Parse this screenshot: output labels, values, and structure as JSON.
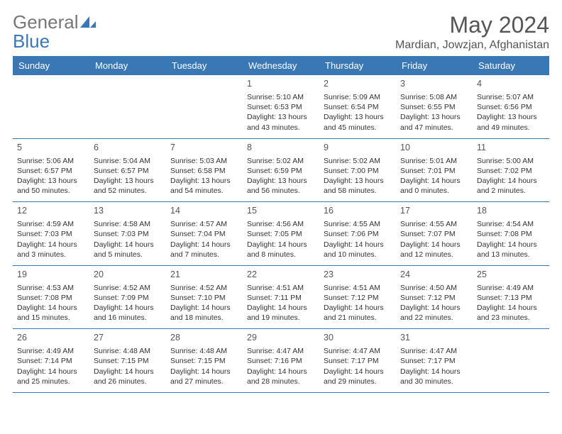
{
  "logo": {
    "general": "General",
    "blue": "Blue"
  },
  "title": "May 2024",
  "location": "Mardian, Jowzjan, Afghanistan",
  "colors": {
    "header_bg": "#3a78b5",
    "header_fg": "#ffffff",
    "border": "#3a78b5",
    "text": "#333333",
    "title_color": "#555555"
  },
  "dayNames": [
    "Sunday",
    "Monday",
    "Tuesday",
    "Wednesday",
    "Thursday",
    "Friday",
    "Saturday"
  ],
  "weeks": [
    [
      null,
      null,
      null,
      {
        "n": "1",
        "sr": "5:10 AM",
        "ss": "6:53 PM",
        "dl": "13 hours and 43 minutes."
      },
      {
        "n": "2",
        "sr": "5:09 AM",
        "ss": "6:54 PM",
        "dl": "13 hours and 45 minutes."
      },
      {
        "n": "3",
        "sr": "5:08 AM",
        "ss": "6:55 PM",
        "dl": "13 hours and 47 minutes."
      },
      {
        "n": "4",
        "sr": "5:07 AM",
        "ss": "6:56 PM",
        "dl": "13 hours and 49 minutes."
      }
    ],
    [
      {
        "n": "5",
        "sr": "5:06 AM",
        "ss": "6:57 PM",
        "dl": "13 hours and 50 minutes."
      },
      {
        "n": "6",
        "sr": "5:04 AM",
        "ss": "6:57 PM",
        "dl": "13 hours and 52 minutes."
      },
      {
        "n": "7",
        "sr": "5:03 AM",
        "ss": "6:58 PM",
        "dl": "13 hours and 54 minutes."
      },
      {
        "n": "8",
        "sr": "5:02 AM",
        "ss": "6:59 PM",
        "dl": "13 hours and 56 minutes."
      },
      {
        "n": "9",
        "sr": "5:02 AM",
        "ss": "7:00 PM",
        "dl": "13 hours and 58 minutes."
      },
      {
        "n": "10",
        "sr": "5:01 AM",
        "ss": "7:01 PM",
        "dl": "14 hours and 0 minutes."
      },
      {
        "n": "11",
        "sr": "5:00 AM",
        "ss": "7:02 PM",
        "dl": "14 hours and 2 minutes."
      }
    ],
    [
      {
        "n": "12",
        "sr": "4:59 AM",
        "ss": "7:03 PM",
        "dl": "14 hours and 3 minutes."
      },
      {
        "n": "13",
        "sr": "4:58 AM",
        "ss": "7:03 PM",
        "dl": "14 hours and 5 minutes."
      },
      {
        "n": "14",
        "sr": "4:57 AM",
        "ss": "7:04 PM",
        "dl": "14 hours and 7 minutes."
      },
      {
        "n": "15",
        "sr": "4:56 AM",
        "ss": "7:05 PM",
        "dl": "14 hours and 8 minutes."
      },
      {
        "n": "16",
        "sr": "4:55 AM",
        "ss": "7:06 PM",
        "dl": "14 hours and 10 minutes."
      },
      {
        "n": "17",
        "sr": "4:55 AM",
        "ss": "7:07 PM",
        "dl": "14 hours and 12 minutes."
      },
      {
        "n": "18",
        "sr": "4:54 AM",
        "ss": "7:08 PM",
        "dl": "14 hours and 13 minutes."
      }
    ],
    [
      {
        "n": "19",
        "sr": "4:53 AM",
        "ss": "7:08 PM",
        "dl": "14 hours and 15 minutes."
      },
      {
        "n": "20",
        "sr": "4:52 AM",
        "ss": "7:09 PM",
        "dl": "14 hours and 16 minutes."
      },
      {
        "n": "21",
        "sr": "4:52 AM",
        "ss": "7:10 PM",
        "dl": "14 hours and 18 minutes."
      },
      {
        "n": "22",
        "sr": "4:51 AM",
        "ss": "7:11 PM",
        "dl": "14 hours and 19 minutes."
      },
      {
        "n": "23",
        "sr": "4:51 AM",
        "ss": "7:12 PM",
        "dl": "14 hours and 21 minutes."
      },
      {
        "n": "24",
        "sr": "4:50 AM",
        "ss": "7:12 PM",
        "dl": "14 hours and 22 minutes."
      },
      {
        "n": "25",
        "sr": "4:49 AM",
        "ss": "7:13 PM",
        "dl": "14 hours and 23 minutes."
      }
    ],
    [
      {
        "n": "26",
        "sr": "4:49 AM",
        "ss": "7:14 PM",
        "dl": "14 hours and 25 minutes."
      },
      {
        "n": "27",
        "sr": "4:48 AM",
        "ss": "7:15 PM",
        "dl": "14 hours and 26 minutes."
      },
      {
        "n": "28",
        "sr": "4:48 AM",
        "ss": "7:15 PM",
        "dl": "14 hours and 27 minutes."
      },
      {
        "n": "29",
        "sr": "4:47 AM",
        "ss": "7:16 PM",
        "dl": "14 hours and 28 minutes."
      },
      {
        "n": "30",
        "sr": "4:47 AM",
        "ss": "7:17 PM",
        "dl": "14 hours and 29 minutes."
      },
      {
        "n": "31",
        "sr": "4:47 AM",
        "ss": "7:17 PM",
        "dl": "14 hours and 30 minutes."
      },
      null
    ]
  ],
  "labels": {
    "sunrise": "Sunrise:",
    "sunset": "Sunset:",
    "daylight": "Daylight:"
  }
}
